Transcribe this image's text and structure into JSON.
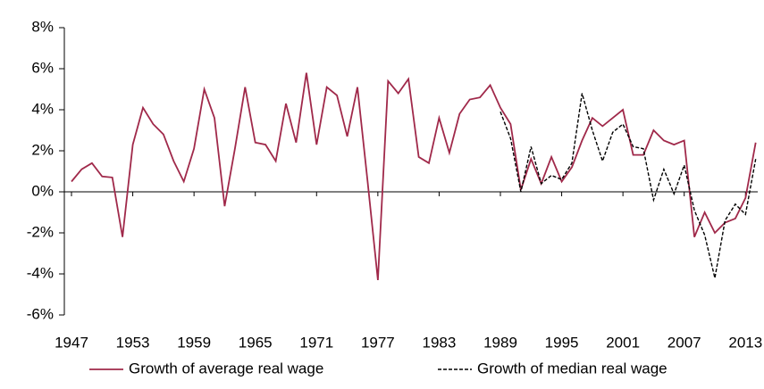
{
  "chart_data": {
    "type": "line",
    "x": [
      1947,
      1948,
      1949,
      1950,
      1951,
      1952,
      1953,
      1954,
      1955,
      1956,
      1957,
      1958,
      1959,
      1960,
      1961,
      1962,
      1963,
      1964,
      1965,
      1966,
      1967,
      1968,
      1969,
      1970,
      1971,
      1972,
      1973,
      1974,
      1975,
      1976,
      1977,
      1978,
      1979,
      1980,
      1981,
      1982,
      1983,
      1984,
      1985,
      1986,
      1987,
      1988,
      1989,
      1990,
      1991,
      1992,
      1993,
      1994,
      1995,
      1996,
      1997,
      1998,
      1999,
      2000,
      2001,
      2002,
      2003,
      2004,
      2005,
      2006,
      2007,
      2008,
      2009,
      2010,
      2011,
      2012,
      2013,
      2014
    ],
    "series": [
      {
        "name": "Growth of average real wage",
        "color": "#a0294a",
        "dash": false,
        "values": [
          0.5,
          1.1,
          1.4,
          0.75,
          0.7,
          -2.2,
          2.3,
          4.1,
          3.3,
          2.8,
          1.5,
          0.5,
          2.1,
          5.0,
          3.6,
          -0.7,
          2.1,
          5.1,
          2.4,
          2.3,
          1.5,
          4.3,
          2.4,
          5.8,
          2.3,
          5.1,
          4.7,
          2.7,
          5.1,
          0.5,
          -4.3,
          5.4,
          4.8,
          5.5,
          1.7,
          1.4,
          3.6,
          1.9,
          3.8,
          4.5,
          4.6,
          5.2,
          4.1,
          3.3,
          0.1,
          1.6,
          0.4,
          1.7,
          0.5,
          1.2,
          2.5,
          3.6,
          3.2,
          3.6,
          4.0,
          1.8,
          1.8,
          3.0,
          2.5,
          2.3,
          2.5,
          -2.2,
          -1.0,
          -2.0,
          -1.5,
          -1.3,
          -0.3,
          2.4
        ]
      },
      {
        "name": "Growth of median real wage",
        "color": "#000000",
        "dash": true,
        "values": [
          null,
          null,
          null,
          null,
          null,
          null,
          null,
          null,
          null,
          null,
          null,
          null,
          null,
          null,
          null,
          null,
          null,
          null,
          null,
          null,
          null,
          null,
          null,
          null,
          null,
          null,
          null,
          null,
          null,
          null,
          null,
          null,
          null,
          null,
          null,
          null,
          null,
          null,
          null,
          null,
          null,
          null,
          3.9,
          2.6,
          0.0,
          2.2,
          0.4,
          0.8,
          0.6,
          1.4,
          4.8,
          3.0,
          1.5,
          2.9,
          3.3,
          2.2,
          2.1,
          -0.4,
          1.1,
          -0.1,
          1.3,
          -0.9,
          -2.1,
          -4.2,
          -1.4,
          -0.6,
          -1.1,
          1.6
        ]
      }
    ],
    "xlim": [
      1946.3,
      2014.2
    ],
    "xticks": [
      1947,
      1953,
      1959,
      1965,
      1971,
      1977,
      1983,
      1989,
      1995,
      2001,
      2007,
      2013
    ],
    "ylim": [
      -6,
      8
    ],
    "yticks": [
      {
        "value": -6,
        "label": "-6%"
      },
      {
        "value": -4,
        "label": "-4%"
      },
      {
        "value": -2,
        "label": "-2%"
      },
      {
        "value": 0,
        "label": "0%"
      },
      {
        "value": 2,
        "label": "2%"
      },
      {
        "value": 4,
        "label": "4%"
      },
      {
        "value": 6,
        "label": "6%"
      },
      {
        "value": 8,
        "label": "8%"
      }
    ],
    "legend": "bottom"
  }
}
